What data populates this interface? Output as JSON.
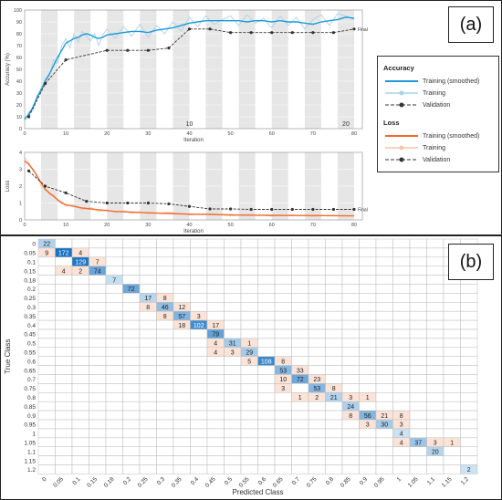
{
  "panel_labels": {
    "a": "(a)",
    "b": "(b)"
  },
  "legend": {
    "accuracy_header": "Accuracy",
    "loss_header": "Loss",
    "items": {
      "acc_smoothed": "Training (smoothed)",
      "acc_training": "Training",
      "acc_validation": "Validation",
      "loss_smoothed": "Training (smoothed)",
      "loss_training": "Training",
      "loss_validation": "Validation"
    }
  },
  "colors": {
    "acc_smoothed": "#1a9bd7",
    "acc_raw": "#a9d3ea",
    "loss_smoothed": "#f26b2d",
    "loss_raw": "#f7c4ae",
    "validation": "#333333",
    "band": "#e6e6e6",
    "cm_diag_strong": "#1a73c2",
    "cm_diag_light": "#cfe5f5",
    "cm_off": "#fbe3d7"
  },
  "chart_data": [
    {
      "type": "line",
      "ylabel": "Accuracy (%)",
      "xlabel": "Iteration",
      "xlim": [
        0,
        82
      ],
      "ylim": [
        0,
        100
      ],
      "xticks": [
        0,
        10,
        20,
        30,
        40,
        50,
        60,
        70,
        80
      ],
      "yticks": [
        0,
        10,
        20,
        30,
        40,
        50,
        60,
        70,
        80,
        90,
        100
      ],
      "epoch_markers": [
        {
          "x": 40,
          "label": "10"
        },
        {
          "x": 78,
          "label": "20"
        }
      ],
      "final_label": "Final",
      "series": [
        {
          "key": "smoothed",
          "x": [
            0,
            1,
            2,
            3,
            4,
            5,
            6,
            7,
            8,
            9,
            10,
            11,
            12,
            13,
            14,
            15,
            16,
            17,
            18,
            19,
            20,
            22,
            24,
            26,
            28,
            30,
            32,
            34,
            36,
            38,
            40,
            42,
            44,
            46,
            48,
            50,
            52,
            54,
            56,
            58,
            60,
            62,
            64,
            66,
            68,
            70,
            72,
            74,
            76,
            78,
            80
          ],
          "y": [
            8,
            12,
            18,
            26,
            33,
            40,
            46,
            53,
            60,
            66,
            72,
            74,
            76,
            77,
            79,
            80,
            79,
            77,
            76,
            77,
            79,
            80,
            81,
            82,
            82,
            81,
            83,
            84,
            85,
            87,
            89,
            90,
            91,
            91,
            91,
            91,
            91,
            90,
            91,
            91,
            90,
            91,
            90,
            90,
            89,
            88,
            90,
            91,
            92,
            94,
            93
          ]
        },
        {
          "key": "raw",
          "x": [
            0,
            1,
            2,
            3,
            4,
            5,
            6,
            7,
            8,
            9,
            10,
            11,
            12,
            13,
            14,
            15,
            16,
            17,
            18,
            19,
            20,
            22,
            24,
            26,
            28,
            30,
            32,
            34,
            36,
            38,
            40,
            42,
            44,
            46,
            48,
            50,
            52,
            54,
            56,
            58,
            60,
            62,
            64,
            66,
            68,
            70,
            72,
            74,
            76,
            78,
            80
          ],
          "y": [
            6,
            14,
            15,
            28,
            31,
            43,
            44,
            58,
            55,
            70,
            76,
            68,
            80,
            73,
            82,
            78,
            74,
            80,
            70,
            79,
            84,
            76,
            86,
            78,
            88,
            77,
            87,
            80,
            90,
            82,
            94,
            86,
            95,
            88,
            92,
            95,
            87,
            96,
            89,
            93,
            85,
            95,
            87,
            94,
            84,
            92,
            96,
            87,
            97,
            95,
            92
          ]
        },
        {
          "key": "validation",
          "x": [
            1,
            5,
            10,
            20,
            25,
            30,
            35,
            40,
            45,
            50,
            55,
            60,
            65,
            70,
            75,
            80
          ],
          "y": [
            10,
            38,
            58,
            66,
            66,
            66,
            68,
            84,
            84,
            81,
            81,
            81,
            81,
            81,
            81,
            84
          ]
        }
      ]
    },
    {
      "type": "line",
      "ylabel": "Loss",
      "xlabel": "Iteration",
      "xlim": [
        0,
        82
      ],
      "ylim": [
        0,
        4
      ],
      "xticks": [
        0,
        10,
        20,
        30,
        40,
        50,
        60,
        70,
        80
      ],
      "yticks": [
        0,
        1,
        2,
        3,
        4
      ],
      "final_label": "Final",
      "series": [
        {
          "key": "smoothed",
          "x": [
            0,
            1,
            2,
            3,
            4,
            5,
            6,
            7,
            8,
            9,
            10,
            12,
            14,
            16,
            18,
            20,
            22,
            24,
            26,
            28,
            30,
            35,
            40,
            45,
            50,
            55,
            60,
            65,
            70,
            75,
            80
          ],
          "y": [
            3.5,
            3.3,
            3.0,
            2.6,
            2.2,
            1.8,
            1.6,
            1.4,
            1.2,
            1.0,
            0.9,
            0.8,
            0.7,
            0.65,
            0.6,
            0.55,
            0.5,
            0.48,
            0.46,
            0.44,
            0.42,
            0.38,
            0.34,
            0.32,
            0.3,
            0.28,
            0.27,
            0.26,
            0.26,
            0.25,
            0.24
          ]
        },
        {
          "key": "raw",
          "x": [
            0,
            1,
            2,
            3,
            4,
            5,
            6,
            7,
            8,
            9,
            10,
            12,
            14,
            16,
            18,
            20,
            22,
            24,
            26,
            28,
            30,
            35,
            40,
            45,
            50,
            55,
            60,
            65,
            70,
            75,
            80
          ],
          "y": [
            3.7,
            3.4,
            2.9,
            2.7,
            2.0,
            1.9,
            1.5,
            1.5,
            1.1,
            1.1,
            0.8,
            0.9,
            0.6,
            0.75,
            0.5,
            0.6,
            0.45,
            0.55,
            0.4,
            0.5,
            0.35,
            0.45,
            0.3,
            0.38,
            0.25,
            0.33,
            0.22,
            0.3,
            0.2,
            0.28,
            0.22
          ]
        },
        {
          "key": "validation",
          "x": [
            1,
            5,
            10,
            15,
            20,
            25,
            30,
            35,
            40,
            45,
            50,
            55,
            60,
            65,
            70,
            75,
            80
          ],
          "y": [
            2.9,
            2.0,
            1.6,
            1.1,
            1.0,
            1.0,
            1.0,
            0.95,
            0.8,
            0.65,
            0.65,
            0.62,
            0.62,
            0.62,
            0.62,
            0.62,
            0.62
          ]
        }
      ]
    },
    {
      "type": "heatmap",
      "xlabel": "Predicted Class",
      "ylabel": "True Class",
      "classes": [
        "0",
        "0.05",
        "0.1",
        "0.15",
        "0.18",
        "0.2",
        "0.25",
        "0.3",
        "0.35",
        "0.4",
        "0.45",
        "0.5",
        "0.55",
        "0.6",
        "0.65",
        "0.7",
        "0.75",
        "0.8",
        "0.85",
        "0.9",
        "0.95",
        "1",
        "1.05",
        "1.1",
        "1.15",
        "1.2"
      ],
      "cells": [
        [
          0,
          0,
          22
        ],
        [
          1,
          0,
          9
        ],
        [
          1,
          1,
          172
        ],
        [
          1,
          2,
          4
        ],
        [
          2,
          2,
          129
        ],
        [
          2,
          3,
          7
        ],
        [
          3,
          1,
          4
        ],
        [
          3,
          2,
          2
        ],
        [
          3,
          3,
          74
        ],
        [
          4,
          4,
          7
        ],
        [
          5,
          5,
          72
        ],
        [
          6,
          6,
          17
        ],
        [
          6,
          7,
          8
        ],
        [
          7,
          6,
          8
        ],
        [
          7,
          7,
          46
        ],
        [
          7,
          8,
          12
        ],
        [
          8,
          7,
          8
        ],
        [
          8,
          8,
          57
        ],
        [
          8,
          9,
          3
        ],
        [
          9,
          8,
          18
        ],
        [
          9,
          9,
          102
        ],
        [
          9,
          10,
          17
        ],
        [
          10,
          10,
          79
        ],
        [
          11,
          10,
          4
        ],
        [
          11,
          11,
          31
        ],
        [
          11,
          12,
          1
        ],
        [
          12,
          10,
          4
        ],
        [
          12,
          11,
          3
        ],
        [
          12,
          12,
          29
        ],
        [
          13,
          12,
          5
        ],
        [
          13,
          13,
          108
        ],
        [
          13,
          14,
          8
        ],
        [
          14,
          14,
          53
        ],
        [
          14,
          15,
          33
        ],
        [
          15,
          14,
          10
        ],
        [
          15,
          15,
          72
        ],
        [
          15,
          16,
          23
        ],
        [
          16,
          14,
          3
        ],
        [
          16,
          16,
          53
        ],
        [
          16,
          17,
          8
        ],
        [
          17,
          15,
          1
        ],
        [
          17,
          16,
          2
        ],
        [
          17,
          17,
          21
        ],
        [
          17,
          18,
          3
        ],
        [
          17,
          19,
          1
        ],
        [
          18,
          18,
          24
        ],
        [
          19,
          18,
          8
        ],
        [
          19,
          19,
          56
        ],
        [
          19,
          20,
          21
        ],
        [
          19,
          21,
          8
        ],
        [
          20,
          19,
          3
        ],
        [
          20,
          20,
          30
        ],
        [
          20,
          21,
          3
        ],
        [
          21,
          21,
          4
        ],
        [
          22,
          21,
          4
        ],
        [
          22,
          22,
          37
        ],
        [
          22,
          23,
          3
        ],
        [
          22,
          24,
          1
        ],
        [
          23,
          23,
          20
        ],
        [
          25,
          25,
          2
        ]
      ]
    }
  ]
}
